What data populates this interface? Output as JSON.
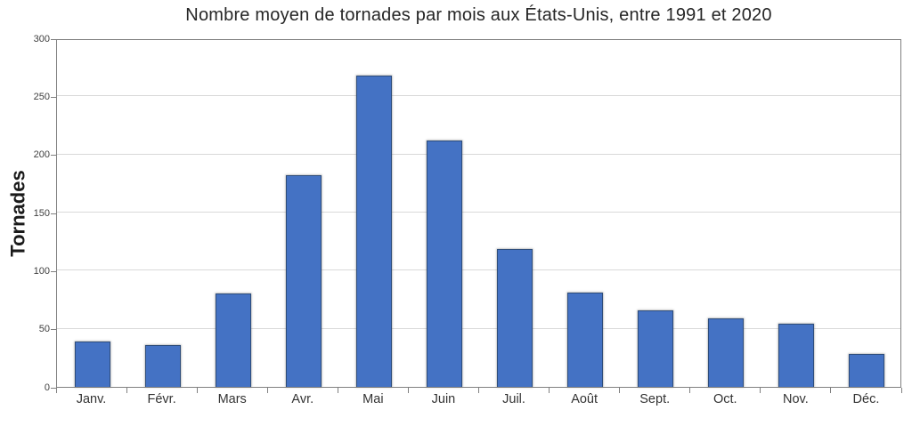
{
  "chart_data": {
    "type": "bar",
    "title": "Nombre moyen de tornades par mois aux États-Unis, entre 1991 et 2020",
    "xlabel": "",
    "ylabel": "Tornades",
    "categories": [
      "Janv.",
      "Févr.",
      "Mars",
      "Avr.",
      "Mai",
      "Juin",
      "Juil.",
      "Août",
      "Sept.",
      "Oct.",
      "Nov.",
      "Déc."
    ],
    "values": [
      39,
      36,
      80,
      182,
      268,
      212,
      119,
      81,
      66,
      59,
      54,
      28
    ],
    "ylim": [
      0,
      300
    ],
    "yticks": [
      0,
      50,
      100,
      150,
      200,
      250,
      300
    ],
    "grid": "horizontal-only",
    "legend_position": "none",
    "colors": {
      "bar_fill": "#4472C4",
      "bar_border": "#2E4D7B",
      "gridline": "#D9D9D9",
      "plot_border": "#808080",
      "title_text": "#262626",
      "axis_tick_text": "#404040",
      "category_text": "#333333"
    }
  }
}
